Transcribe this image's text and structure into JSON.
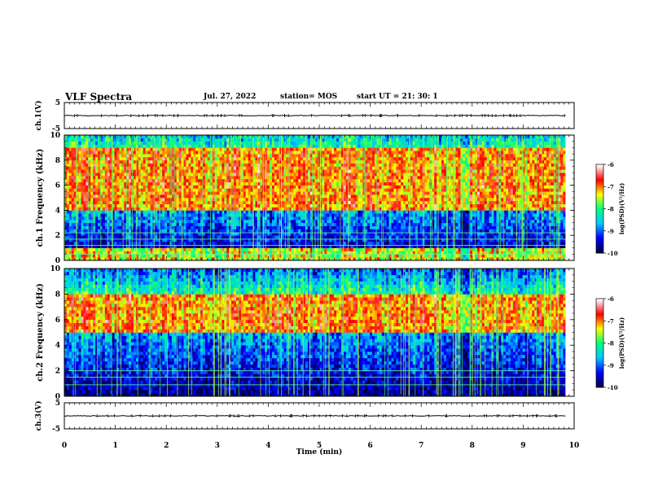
{
  "header": {
    "title": "VLF Spectra",
    "date": "Jul. 27, 2022",
    "station": "station= MOS",
    "start_ut": "start UT =  21: 30: 1"
  },
  "chart_data": {
    "type": "heatmap",
    "xlabel": "Time (min)",
    "xlim": [
      0,
      10
    ],
    "xticks": [
      "0",
      "1",
      "2",
      "3",
      "4",
      "5",
      "6",
      "7",
      "8",
      "9",
      "10"
    ],
    "data_end_min": 9.83,
    "panels": [
      {
        "id": "ch1-voltage",
        "ylabel": "ch.1(V)",
        "ylim": [
          -5,
          5
        ],
        "yticks": [
          "5",
          "-5"
        ],
        "trace_value": 0,
        "kind": "trace"
      },
      {
        "id": "ch1-spectrogram",
        "ylabel": "ch.1 Frequency (kHz)",
        "ylim": [
          0,
          10
        ],
        "yticks": [
          "0",
          "2",
          "4",
          "6",
          "8",
          "10"
        ],
        "kind": "spectrogram",
        "noise_line_khz": [
          0.5,
          1.2,
          1.7,
          2.2
        ],
        "dominant_band_khz": [
          4,
          9
        ]
      },
      {
        "id": "ch2-spectrogram",
        "ylabel": "ch.2 Frequency (kHz)",
        "ylim": [
          0,
          10
        ],
        "yticks": [
          "0",
          "2",
          "4",
          "6",
          "8",
          "10"
        ],
        "kind": "spectrogram",
        "noise_line_khz": [
          0.9,
          1.5,
          2.0
        ],
        "dominant_band_khz": [
          5,
          8
        ]
      },
      {
        "id": "ch3-voltage",
        "ylabel": "ch.3(V)",
        "ylim": [
          -5,
          5
        ],
        "yticks": [
          "5",
          "-5"
        ],
        "trace_value": 0,
        "kind": "trace"
      }
    ],
    "colorbar": {
      "label": "log(PSD)(V²/Hz)",
      "range": [
        -10,
        -6
      ],
      "ticks": [
        "-6",
        "-7",
        "-8",
        "-9",
        "-10"
      ],
      "colors": [
        "#000044",
        "#0000ff",
        "#00c8ff",
        "#00ff80",
        "#ffff00",
        "#ff0000",
        "#ffffff"
      ]
    }
  }
}
